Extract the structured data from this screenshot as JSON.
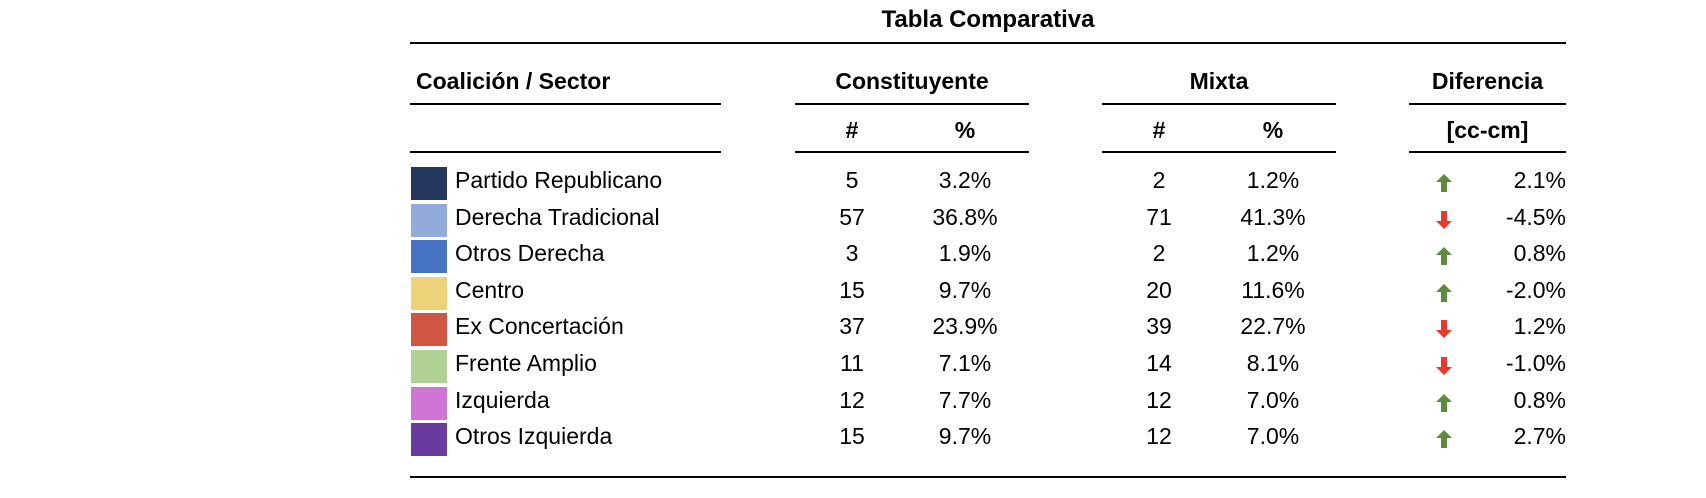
{
  "chart_data": {
    "type": "table",
    "title": "Tabla Comparativa",
    "headers": {
      "sector": "Coalición / Sector",
      "constituyente": "Constituyente",
      "mixta": "Mixta",
      "diferencia": "Diferencia",
      "count_symbol": "#",
      "pct_symbol": "%",
      "diff_unit": "[cc-cm]"
    },
    "rows": [
      {
        "name": "Partido Republicano",
        "color": "#23375f",
        "cc_n": "5",
        "cc_pct": "3.2%",
        "cm_n": "2",
        "cm_pct": "1.2%",
        "diff": "2.1%",
        "arrow": "up"
      },
      {
        "name": "Derecha Tradicional",
        "color": "#92abda",
        "cc_n": "57",
        "cc_pct": "36.8%",
        "cm_n": "71",
        "cm_pct": "41.3%",
        "diff": "-4.5%",
        "arrow": "down"
      },
      {
        "name": "Otros Derecha",
        "color": "#4673c4",
        "cc_n": "3",
        "cc_pct": "1.9%",
        "cm_n": "2",
        "cm_pct": "1.2%",
        "diff": "0.8%",
        "arrow": "up"
      },
      {
        "name": "Centro",
        "color": "#eed27a",
        "cc_n": "15",
        "cc_pct": "9.7%",
        "cm_n": "20",
        "cm_pct": "11.6%",
        "diff": "-2.0%",
        "arrow": "up"
      },
      {
        "name": "Ex Concertación",
        "color": "#d05543",
        "cc_n": "37",
        "cc_pct": "23.9%",
        "cm_n": "39",
        "cm_pct": "22.7%",
        "diff": "1.2%",
        "arrow": "down"
      },
      {
        "name": "Frente Amplio",
        "color": "#b0d095",
        "cc_n": "11",
        "cc_pct": "7.1%",
        "cm_n": "14",
        "cm_pct": "8.1%",
        "diff": "-1.0%",
        "arrow": "down"
      },
      {
        "name": "Izquierda",
        "color": "#cf76d4",
        "cc_n": "12",
        "cc_pct": "7.7%",
        "cm_n": "12",
        "cm_pct": "7.0%",
        "diff": "0.8%",
        "arrow": "up"
      },
      {
        "name": "Otros Izquierda",
        "color": "#6b3a9e",
        "cc_n": "15",
        "cc_pct": "9.7%",
        "cm_n": "12",
        "cm_pct": "7.0%",
        "diff": "2.7%",
        "arrow": "up"
      }
    ],
    "arrow_colors": {
      "up": "#5e8b3e",
      "down": "#e8392d"
    }
  }
}
